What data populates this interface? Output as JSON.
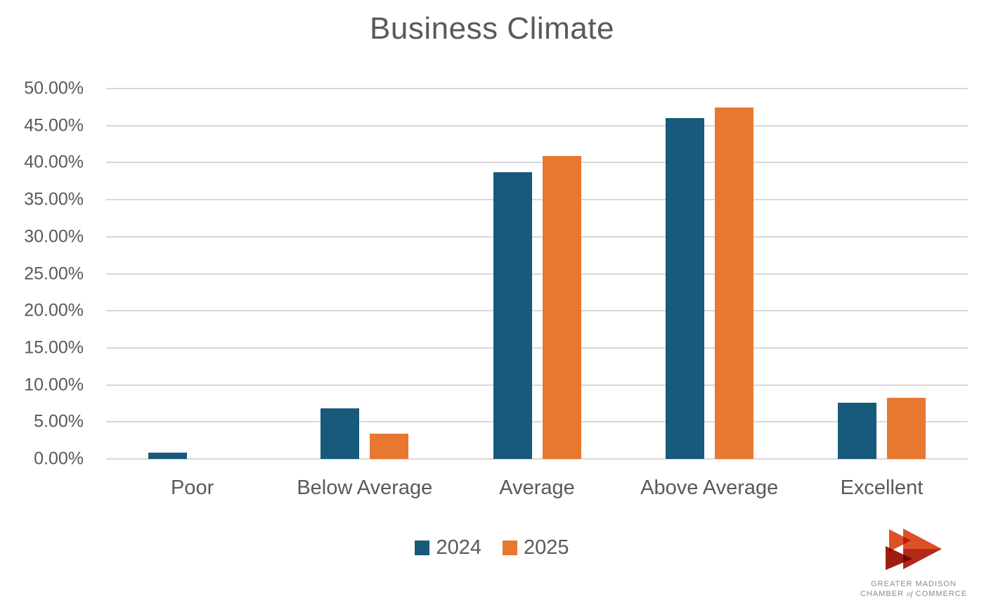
{
  "page": {
    "background": "#ffffff"
  },
  "chart_data": {
    "type": "bar",
    "title": "Business Climate",
    "categories": [
      "Poor",
      "Below Average",
      "Average",
      "Above Average",
      "Excellent"
    ],
    "series": [
      {
        "name": "2024",
        "color": "#175a7c",
        "values": [
          0.9,
          6.8,
          38.7,
          46.0,
          7.6
        ]
      },
      {
        "name": "2025",
        "color": "#e87730",
        "values": [
          0.0,
          3.4,
          40.9,
          47.4,
          8.3
        ]
      }
    ],
    "xlabel": "",
    "ylabel": "",
    "ylim": [
      0,
      50
    ],
    "ytick_step": 5,
    "ytick_labels": [
      "0.00%",
      "5.00%",
      "10.00%",
      "15.00%",
      "20.00%",
      "25.00%",
      "30.00%",
      "35.00%",
      "40.00%",
      "45.00%",
      "50.00%"
    ],
    "grid": true,
    "gridline_color": "#d9d9d9",
    "text_color": "#595959",
    "legend_position": "bottom"
  },
  "logo": {
    "line1": "GREATER MADISON",
    "line2_part1": "CHAMBER",
    "line2_of": "of",
    "line2_part2": "COMMERCE",
    "text_color": "#8a8a8a",
    "mark_colors": {
      "orange": "#dd5128",
      "red": "#b42818",
      "dark_red": "#a01b10"
    }
  }
}
